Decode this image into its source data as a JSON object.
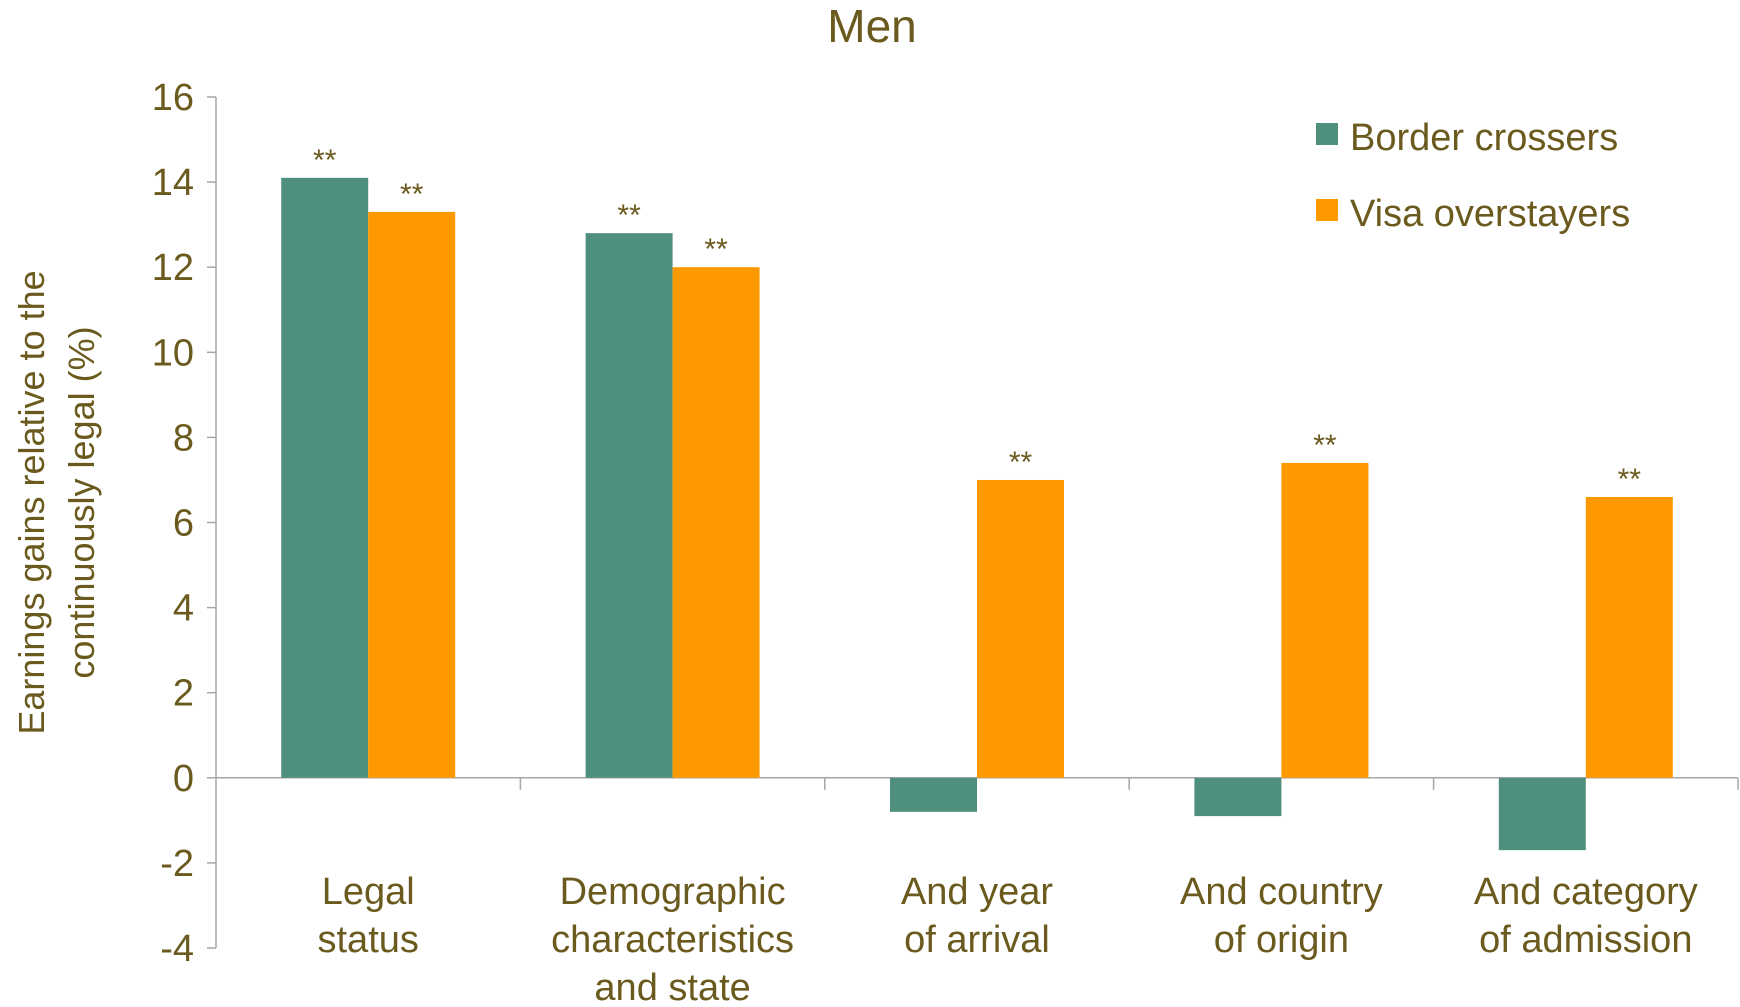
{
  "chart_data": {
    "type": "bar",
    "title": "Men",
    "xlabel": "",
    "ylabel": [
      "Earnings gains relative to the",
      "continuously legal (%)"
    ],
    "ylim": [
      -4,
      16
    ],
    "yticks": [
      16,
      14,
      12,
      10,
      8,
      6,
      4,
      2,
      0,
      -2,
      -4
    ],
    "categories": [
      [
        "Legal",
        "status"
      ],
      [
        "Demographic",
        "characteristics",
        "and state"
      ],
      [
        "And year",
        "of arrival"
      ],
      [
        "And country",
        "of origin"
      ],
      [
        "And category",
        "of admission"
      ]
    ],
    "series": [
      {
        "name": "Border crossers",
        "color": "#4e8f7e",
        "values": [
          14.1,
          12.8,
          -0.8,
          -0.9,
          -1.7
        ],
        "labels": [
          "**",
          "**",
          "",
          "",
          ""
        ]
      },
      {
        "name": "Visa overstayers",
        "color": "#ff9900",
        "values": [
          13.3,
          12.0,
          7.0,
          7.4,
          6.6
        ],
        "labels": [
          "**",
          "**",
          "**",
          "**",
          "**"
        ]
      }
    ],
    "legend_position": "top-right",
    "grid": false
  }
}
